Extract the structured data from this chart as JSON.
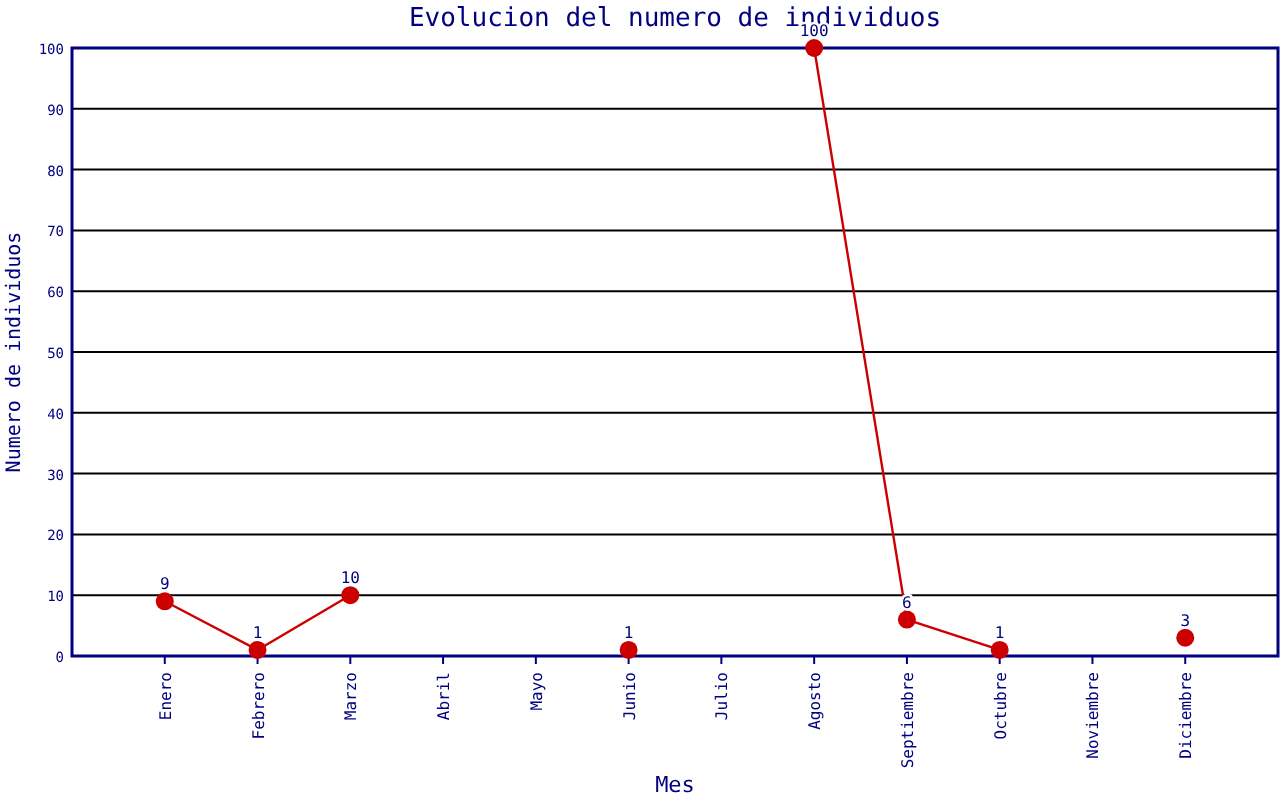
{
  "chart_data": {
    "type": "line",
    "title": "Evolucion del numero de individuos",
    "xlabel": "Mes",
    "ylabel": "Numero de individuos",
    "categories": [
      "Enero",
      "Febrero",
      "Marzo",
      "Abril",
      "Mayo",
      "Junio",
      "Julio",
      "Agosto",
      "Septiembre",
      "Octubre",
      "Noviembre",
      "Diciembre"
    ],
    "series": [
      {
        "color": "#cc0000",
        "values": [
          9,
          1,
          10,
          null,
          null,
          1,
          null,
          100,
          6,
          1,
          null,
          3
        ]
      }
    ],
    "ylim": [
      0,
      100
    ],
    "yticks": [
      0,
      10,
      20,
      30,
      40,
      50,
      60,
      70,
      80,
      90,
      100
    ],
    "grid": "y",
    "marker": "circle",
    "data_labels": true
  }
}
